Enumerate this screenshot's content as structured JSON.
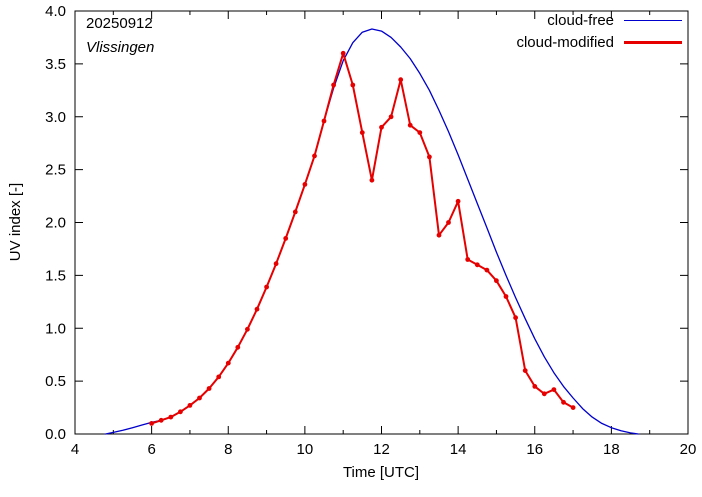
{
  "figure": {
    "date_label": "20250912",
    "station_label": "Vlissingen"
  },
  "axes": {
    "x_label": "Time  [UTC]",
    "y_label": "UV index  [-]"
  },
  "legend": [
    {
      "label": "cloud-free",
      "color": "#0000cc",
      "sample_width": 1.5
    },
    {
      "label": "cloud-modified",
      "color": "#e60000",
      "sample_width": 3
    }
  ],
  "chart_data": {
    "type": "line",
    "title": "20250912",
    "subtitle": "Vlissingen",
    "xlabel": "Time [UTC]",
    "ylabel": "UV index [-]",
    "xlim": [
      4,
      20
    ],
    "ylim": [
      0,
      4
    ],
    "grid": false,
    "legend_position": "top-right",
    "x_ticks": [
      4,
      6,
      8,
      10,
      12,
      14,
      16,
      18,
      20
    ],
    "x_minor_ticks": [
      5,
      7,
      9,
      11,
      13,
      15,
      17,
      19
    ],
    "y_ticks": [
      0,
      0.5,
      1,
      1.5,
      2,
      2.5,
      3,
      3.5,
      4
    ],
    "series": [
      {
        "name": "cloud-free",
        "color": "#0000cc",
        "width": 1.3,
        "markers": false,
        "x": [
          4.8,
          5,
          5.25,
          5.5,
          5.75,
          6,
          6.25,
          6.5,
          6.75,
          7,
          7.25,
          7.5,
          7.75,
          8,
          8.25,
          8.5,
          8.75,
          9,
          9.25,
          9.5,
          9.75,
          10,
          10.25,
          10.5,
          10.75,
          11,
          11.25,
          11.5,
          11.75,
          12,
          12.25,
          12.5,
          12.75,
          13,
          13.25,
          13.5,
          13.75,
          14,
          14.25,
          14.5,
          14.75,
          15,
          15.25,
          15.5,
          15.75,
          16,
          16.25,
          16.5,
          16.75,
          17,
          17.25,
          17.5,
          17.75,
          18,
          18.25,
          18.5,
          18.7
        ],
        "y": [
          0.0,
          0.015,
          0.035,
          0.06,
          0.085,
          0.11,
          0.13,
          0.16,
          0.21,
          0.27,
          0.34,
          0.43,
          0.54,
          0.67,
          0.82,
          0.99,
          1.18,
          1.39,
          1.61,
          1.85,
          2.1,
          2.36,
          2.63,
          2.96,
          3.27,
          3.53,
          3.7,
          3.8,
          3.83,
          3.81,
          3.75,
          3.66,
          3.55,
          3.41,
          3.25,
          3.06,
          2.86,
          2.64,
          2.41,
          2.18,
          1.95,
          1.72,
          1.5,
          1.29,
          1.09,
          0.9,
          0.73,
          0.58,
          0.45,
          0.34,
          0.24,
          0.16,
          0.1,
          0.06,
          0.03,
          0.01,
          0.0
        ]
      },
      {
        "name": "cloud-modified",
        "color": "#e60000",
        "width": 2,
        "markers": true,
        "x": [
          6,
          6.25,
          6.5,
          6.75,
          7,
          7.25,
          7.5,
          7.75,
          8,
          8.25,
          8.5,
          8.75,
          9,
          9.25,
          9.5,
          9.75,
          10,
          10.25,
          10.5,
          10.75,
          11,
          11.25,
          11.5,
          11.75,
          12,
          12.25,
          12.5,
          12.75,
          13,
          13.25,
          13.5,
          13.75,
          14,
          14.25,
          14.5,
          14.75,
          15,
          15.25,
          15.5,
          15.75,
          16,
          16.25,
          16.5,
          16.75,
          17
        ],
        "y": [
          0.1,
          0.13,
          0.16,
          0.21,
          0.27,
          0.34,
          0.43,
          0.54,
          0.67,
          0.82,
          0.99,
          1.18,
          1.39,
          1.61,
          1.85,
          2.1,
          2.36,
          2.63,
          2.96,
          3.3,
          3.6,
          3.3,
          2.85,
          2.4,
          2.9,
          3.0,
          3.35,
          2.92,
          2.85,
          2.62,
          1.88,
          2.0,
          2.2,
          1.65,
          1.6,
          1.55,
          1.45,
          1.3,
          1.1,
          0.6,
          0.45,
          0.38,
          0.42,
          0.3,
          0.25
        ]
      }
    ]
  }
}
